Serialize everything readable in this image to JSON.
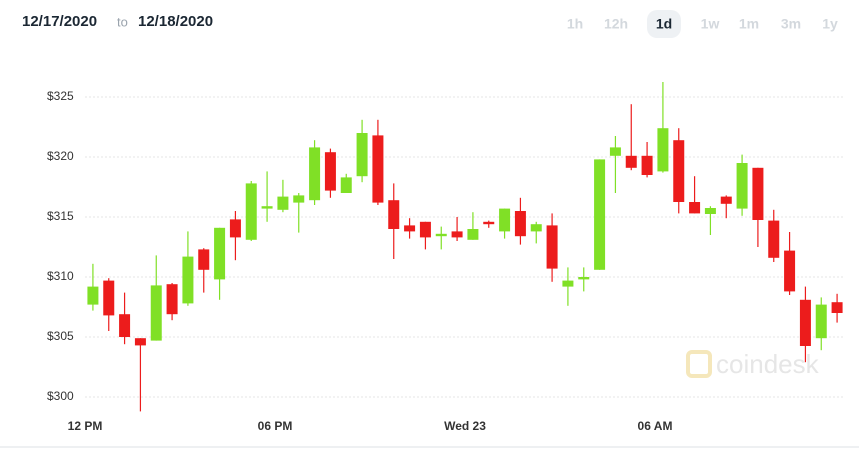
{
  "header": {
    "from": "12/17/2020",
    "joiner": "to",
    "to": "12/18/2020"
  },
  "range_buttons": [
    "1h",
    "12h",
    "1d",
    "1w",
    "1m",
    "3m",
    "1y"
  ],
  "selected_range": "1d",
  "watermark": "coindesk",
  "chart_data": {
    "type": "candlestick",
    "up_color": "#80e026",
    "down_color": "#ec1c1c",
    "grid": true,
    "xlim": [
      0,
      24
    ],
    "xticks": [
      {
        "value": 0,
        "label": "12 PM"
      },
      {
        "value": 6,
        "label": "06 PM"
      },
      {
        "value": 12,
        "label": "Wed 23"
      },
      {
        "value": 18,
        "label": "06 AM"
      }
    ],
    "ylim": [
      298.5,
      328
    ],
    "yticks": [
      {
        "value": 300,
        "label": "$300"
      },
      {
        "value": 305,
        "label": "$305"
      },
      {
        "value": 310,
        "label": "$310"
      },
      {
        "value": 315,
        "label": "$315"
      },
      {
        "value": 320,
        "label": "$320"
      },
      {
        "value": 325,
        "label": "$325"
      }
    ],
    "x": [
      0.25,
      0.75,
      1.25,
      1.75,
      2.25,
      2.75,
      3.25,
      3.75,
      4.25,
      4.75,
      5.25,
      5.75,
      6.25,
      6.75,
      7.25,
      7.75,
      8.25,
      8.75,
      9.25,
      9.75,
      10.25,
      10.75,
      11.25,
      11.75,
      12.25,
      12.75,
      13.25,
      13.75,
      14.25,
      14.75,
      15.25,
      15.75,
      16.25,
      16.75,
      17.25,
      17.75,
      18.25,
      18.75,
      19.25,
      19.75,
      20.25,
      20.75,
      21.25,
      21.75,
      22.25,
      22.75,
      23.25,
      23.75
    ],
    "open": [
      307.7,
      309.7,
      306.9,
      304.9,
      304.7,
      309.4,
      307.8,
      312.3,
      309.8,
      314.8,
      313.1,
      315.7,
      315.6,
      316.2,
      316.4,
      320.4,
      317.0,
      318.4,
      321.8,
      316.4,
      314.3,
      314.6,
      313.4,
      313.8,
      313.1,
      314.6,
      313.8,
      315.5,
      313.8,
      314.3,
      309.2,
      309.8,
      310.6,
      320.1,
      320.1,
      320.1,
      318.8,
      321.4,
      316.25,
      315.25,
      316.7,
      315.7,
      319.1,
      314.7,
      312.2,
      308.1,
      304.9,
      307.9
    ],
    "high": [
      311.1,
      309.9,
      308.7,
      304.9,
      311.8,
      309.5,
      313.8,
      312.4,
      314.1,
      315.5,
      318.0,
      318.8,
      318.1,
      317.0,
      321.4,
      320.7,
      318.6,
      323.1,
      323.1,
      317.8,
      314.9,
      314.6,
      314.2,
      315.0,
      315.4,
      314.7,
      315.7,
      316.6,
      314.6,
      315.3,
      310.8,
      310.8,
      319.8,
      321.75,
      324.4,
      321.25,
      326.25,
      322.4,
      318.4,
      315.9,
      316.8,
      320.2,
      319.1,
      315.6,
      313.75,
      309.2,
      308.3,
      308.6
    ],
    "low": [
      307.2,
      305.5,
      304.4,
      298.8,
      304.7,
      306.4,
      307.6,
      308.7,
      308.1,
      311.4,
      313.0,
      314.6,
      315.4,
      313.7,
      316.0,
      316.6,
      317.0,
      317.9,
      316.0,
      311.5,
      313.2,
      312.3,
      312.3,
      313.0,
      313.1,
      314.1,
      313.2,
      312.7,
      312.8,
      309.6,
      307.6,
      308.8,
      310.6,
      317.0,
      318.9,
      318.3,
      318.7,
      315.3,
      315.3,
      313.5,
      314.9,
      315.1,
      312.5,
      311.25,
      308.5,
      302.9,
      303.9,
      306.2
    ],
    "close": [
      309.2,
      306.8,
      305.0,
      304.3,
      309.3,
      306.9,
      311.7,
      310.6,
      314.1,
      313.3,
      317.8,
      315.9,
      316.7,
      316.8,
      320.8,
      317.2,
      318.3,
      322.0,
      316.2,
      314.0,
      313.8,
      313.3,
      313.6,
      313.3,
      314.0,
      314.4,
      315.7,
      313.4,
      314.4,
      310.7,
      309.7,
      310.0,
      319.8,
      320.8,
      319.1,
      318.5,
      322.4,
      316.25,
      315.3,
      315.75,
      316.1,
      319.5,
      314.75,
      311.6,
      308.8,
      304.25,
      307.7,
      307.0
    ]
  }
}
